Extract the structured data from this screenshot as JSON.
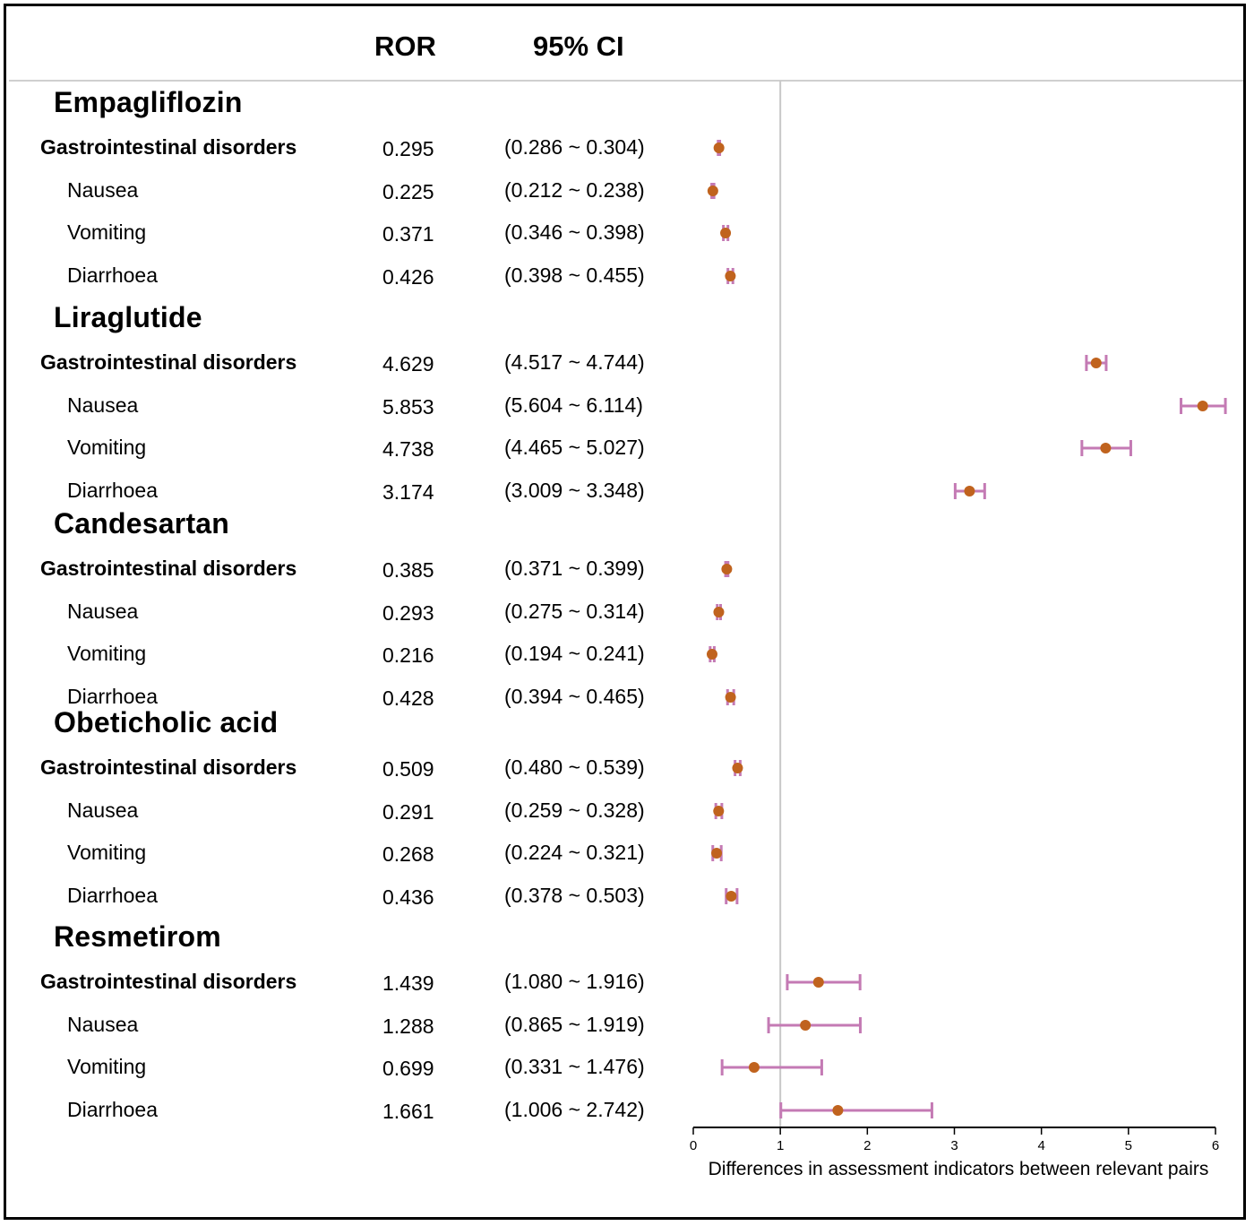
{
  "header": {
    "ror_label": "ROR",
    "ci_label": "95% CI"
  },
  "chart_data": {
    "type": "forest",
    "xlabel": "Differences in assessment indicators between relevant pairs",
    "xlim": [
      0,
      6
    ],
    "xticks": [
      0,
      1,
      2,
      3,
      4,
      5,
      6
    ],
    "reference_line": 1,
    "colors": {
      "point": "#c0631e",
      "ci": "#c47ab4",
      "refline": "#c8c8c8"
    },
    "groups": [
      {
        "drug": "Empagliflozin",
        "rows": [
          {
            "label": "Gastrointestinal disorders",
            "bold": true,
            "ror": 0.295,
            "ror_text": "0.295",
            "lo": 0.286,
            "hi": 0.304,
            "ci_text": "(0.286 ~ 0.304)"
          },
          {
            "label": "Nausea",
            "bold": false,
            "ror": 0.225,
            "ror_text": "0.225",
            "lo": 0.212,
            "hi": 0.238,
            "ci_text": "(0.212 ~ 0.238)"
          },
          {
            "label": "Vomiting",
            "bold": false,
            "ror": 0.371,
            "ror_text": "0.371",
            "lo": 0.346,
            "hi": 0.398,
            "ci_text": "(0.346 ~ 0.398)"
          },
          {
            "label": "Diarrhoea",
            "bold": false,
            "ror": 0.426,
            "ror_text": "0.426",
            "lo": 0.398,
            "hi": 0.455,
            "ci_text": "(0.398 ~ 0.455)"
          }
        ]
      },
      {
        "drug": "Liraglutide",
        "rows": [
          {
            "label": "Gastrointestinal disorders",
            "bold": true,
            "ror": 4.629,
            "ror_text": "4.629",
            "lo": 4.517,
            "hi": 4.744,
            "ci_text": "(4.517 ~ 4.744)"
          },
          {
            "label": "Nausea",
            "bold": false,
            "ror": 5.853,
            "ror_text": "5.853",
            "lo": 5.604,
            "hi": 6.114,
            "ci_text": "(5.604 ~ 6.114)"
          },
          {
            "label": "Vomiting",
            "bold": false,
            "ror": 4.738,
            "ror_text": "4.738",
            "lo": 4.465,
            "hi": 5.027,
            "ci_text": "(4.465 ~ 5.027)"
          },
          {
            "label": "Diarrhoea",
            "bold": false,
            "ror": 3.174,
            "ror_text": "3.174",
            "lo": 3.009,
            "hi": 3.348,
            "ci_text": "(3.009 ~ 3.348)"
          }
        ]
      },
      {
        "drug": "Candesartan",
        "rows": [
          {
            "label": "Gastrointestinal disorders",
            "bold": true,
            "ror": 0.385,
            "ror_text": "0.385",
            "lo": 0.371,
            "hi": 0.399,
            "ci_text": "(0.371 ~ 0.399)"
          },
          {
            "label": "Nausea",
            "bold": false,
            "ror": 0.293,
            "ror_text": "0.293",
            "lo": 0.275,
            "hi": 0.314,
            "ci_text": "(0.275 ~ 0.314)"
          },
          {
            "label": "Vomiting",
            "bold": false,
            "ror": 0.216,
            "ror_text": "0.216",
            "lo": 0.194,
            "hi": 0.241,
            "ci_text": "(0.194 ~ 0.241)"
          },
          {
            "label": "Diarrhoea",
            "bold": false,
            "ror": 0.428,
            "ror_text": "0.428",
            "lo": 0.394,
            "hi": 0.465,
            "ci_text": "(0.394 ~ 0.465)"
          }
        ]
      },
      {
        "drug": "Obeticholic acid",
        "rows": [
          {
            "label": "Gastrointestinal disorders",
            "bold": true,
            "ror": 0.509,
            "ror_text": "0.509",
            "lo": 0.48,
            "hi": 0.539,
            "ci_text": "(0.480 ~ 0.539)"
          },
          {
            "label": "Nausea",
            "bold": false,
            "ror": 0.291,
            "ror_text": "0.291",
            "lo": 0.259,
            "hi": 0.328,
            "ci_text": "(0.259 ~ 0.328)"
          },
          {
            "label": "Vomiting",
            "bold": false,
            "ror": 0.268,
            "ror_text": "0.268",
            "lo": 0.224,
            "hi": 0.321,
            "ci_text": "(0.224 ~ 0.321)"
          },
          {
            "label": "Diarrhoea",
            "bold": false,
            "ror": 0.436,
            "ror_text": "0.436",
            "lo": 0.378,
            "hi": 0.503,
            "ci_text": "(0.378 ~ 0.503)"
          }
        ]
      },
      {
        "drug": "Resmetirom",
        "rows": [
          {
            "label": "Gastrointestinal disorders",
            "bold": true,
            "ror": 1.439,
            "ror_text": "1.439",
            "lo": 1.08,
            "hi": 1.916,
            "ci_text": "(1.080 ~ 1.916)"
          },
          {
            "label": "Nausea",
            "bold": false,
            "ror": 1.288,
            "ror_text": "1.288",
            "lo": 0.865,
            "hi": 1.919,
            "ci_text": "(0.865 ~ 1.919)"
          },
          {
            "label": "Vomiting",
            "bold": false,
            "ror": 0.699,
            "ror_text": "0.699",
            "lo": 0.331,
            "hi": 1.476,
            "ci_text": "(0.331 ~ 1.476)"
          },
          {
            "label": "Diarrhoea",
            "bold": false,
            "ror": 1.661,
            "ror_text": "1.661",
            "lo": 1.006,
            "hi": 2.742,
            "ci_text": "(1.006 ~ 2.742)"
          }
        ]
      }
    ]
  }
}
